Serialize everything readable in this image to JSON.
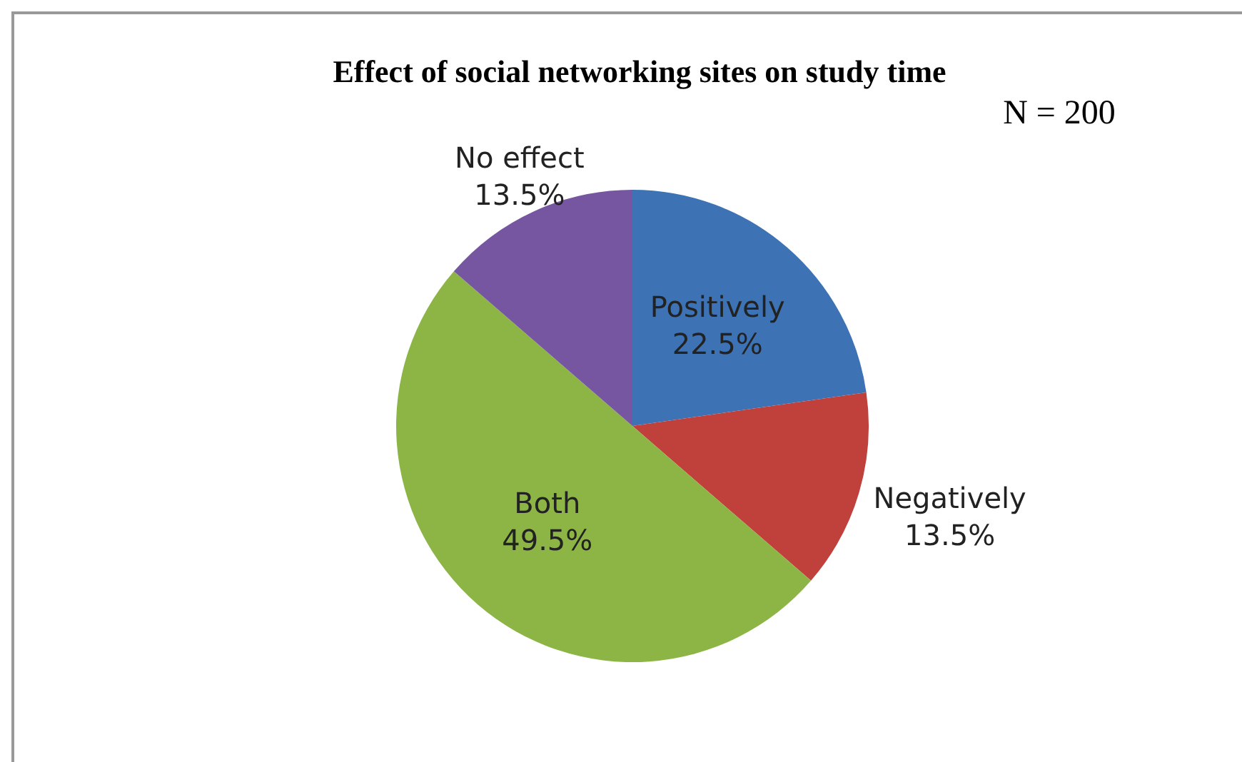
{
  "chart_data": {
    "type": "pie",
    "title": "Effect of social networking sites on study time",
    "categories": [
      "Positively",
      "Negatively",
      "Both",
      "No effect"
    ],
    "values": [
      22.5,
      13.5,
      49.5,
      13.5
    ],
    "value_labels": [
      "22.5%",
      "13.5%",
      "49.5%",
      "13.5%"
    ],
    "colors": [
      "#3d72b4",
      "#c0403c",
      "#8cb545",
      "#7656a0"
    ],
    "annotations": [
      "N = 200"
    ],
    "legend": false
  }
}
